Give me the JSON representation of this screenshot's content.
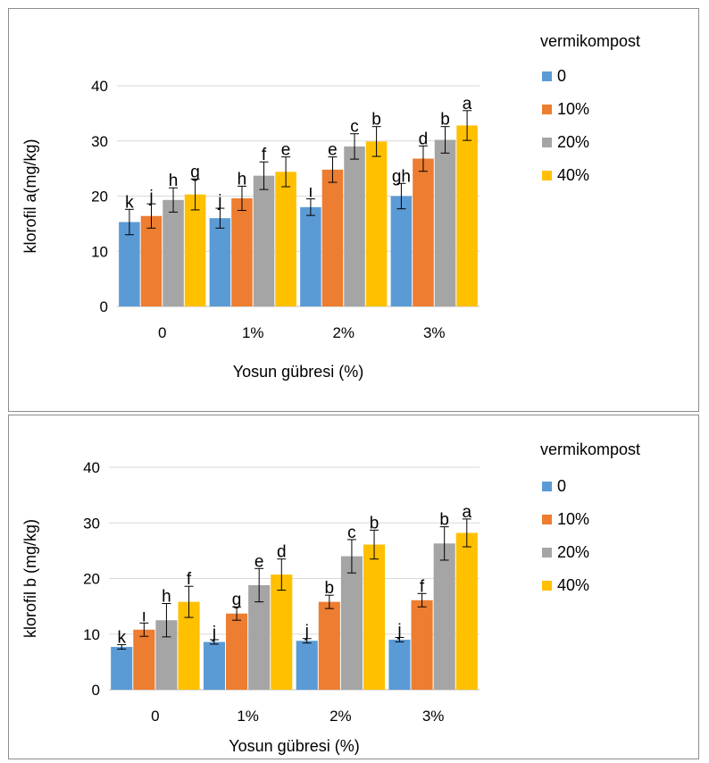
{
  "chart_data": [
    {
      "type": "bar",
      "xlabel": "Yosun gübresi (%)",
      "ylabel": "klorofil a(mg/kg)",
      "ylim": [
        0,
        40
      ],
      "yticks": [
        "0",
        "10",
        "20",
        "30",
        "40"
      ],
      "categories": [
        "0",
        "1%",
        "2%",
        "3%"
      ],
      "legend_title": "vermikompost",
      "legend_position": "right",
      "gridlines": true,
      "series": [
        {
          "name": "0",
          "color": "#5b9bd5",
          "values": [
            15.3,
            16.0,
            18.0,
            20.0
          ],
          "errors": [
            2.3,
            1.8,
            1.5,
            2.3
          ],
          "labels": [
            "k",
            "j",
            "ı",
            "gh"
          ]
        },
        {
          "name": "10%",
          "color": "#ed7d31",
          "values": [
            16.4,
            19.6,
            24.8,
            26.8
          ],
          "errors": [
            2.2,
            2.2,
            2.3,
            2.3
          ],
          "labels": [
            "j",
            "h",
            "e",
            "d"
          ]
        },
        {
          "name": "20%",
          "color": "#a5a5a5",
          "values": [
            19.3,
            23.7,
            29.0,
            30.2
          ],
          "errors": [
            2.2,
            2.5,
            2.3,
            2.4
          ],
          "labels": [
            "h",
            "f",
            "c",
            "b"
          ]
        },
        {
          "name": "40%",
          "color": "#ffc000",
          "values": [
            20.3,
            24.4,
            29.9,
            32.8
          ],
          "errors": [
            2.8,
            2.7,
            2.7,
            2.7
          ],
          "labels": [
            "g",
            "e",
            "b",
            "a"
          ]
        }
      ]
    },
    {
      "type": "bar",
      "xlabel": "Yosun gübresi (%)",
      "ylabel": "klorofil b (mg/kg)",
      "ylim": [
        0,
        40
      ],
      "yticks": [
        "0",
        "10",
        "20",
        "30",
        "40"
      ],
      "categories": [
        "0",
        "1%",
        "2%",
        "3%"
      ],
      "legend_title": "vermikompost",
      "legend_position": "right",
      "gridlines": true,
      "series": [
        {
          "name": "0",
          "color": "#5b9bd5",
          "values": [
            7.7,
            8.6,
            8.8,
            9.0
          ],
          "errors": [
            0.4,
            0.4,
            0.4,
            0.4
          ],
          "labels": [
            "k",
            "j",
            "j",
            "j"
          ]
        },
        {
          "name": "10%",
          "color": "#ed7d31",
          "values": [
            10.8,
            13.7,
            15.8,
            16.1
          ],
          "errors": [
            1.2,
            1.2,
            1.2,
            1.2
          ],
          "labels": [
            "ı",
            "g",
            "b",
            "f"
          ]
        },
        {
          "name": "20%",
          "color": "#a5a5a5",
          "values": [
            12.5,
            18.8,
            24.0,
            26.3
          ],
          "errors": [
            3.0,
            3.0,
            3.0,
            3.0
          ],
          "labels": [
            "h",
            "e",
            "c",
            "b"
          ]
        },
        {
          "name": "40%",
          "color": "#ffc000",
          "values": [
            15.8,
            20.7,
            26.1,
            28.2
          ],
          "errors": [
            2.8,
            2.8,
            2.6,
            2.5
          ],
          "labels": [
            "f",
            "d",
            "b",
            "a"
          ]
        }
      ]
    }
  ]
}
